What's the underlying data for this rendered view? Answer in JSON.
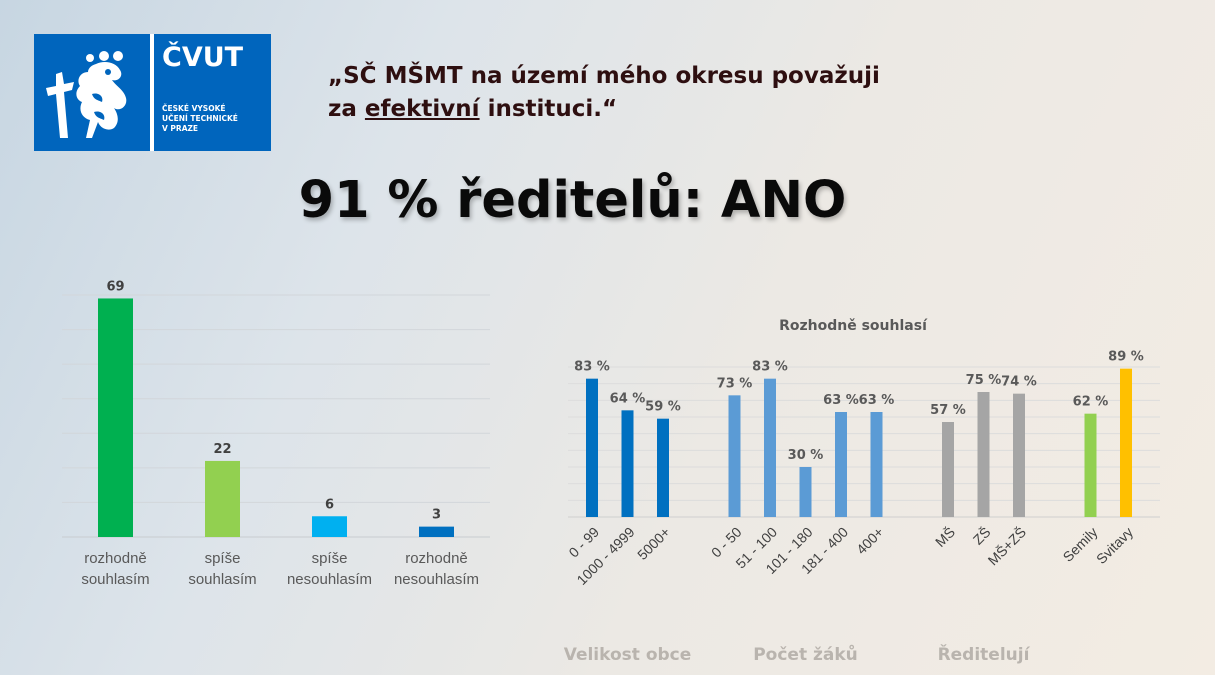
{
  "logo": {
    "brand": "ČVUT",
    "line1": "ČESKÉ VYSOKÉ",
    "line2": "UČENÍ TECHNICKÉ",
    "line3": "V PRAZE"
  },
  "quote": {
    "before": "„SČ MŠMT na území mého okresu považuji",
    "line2_prefix": "za ",
    "underlined": "efektivní",
    "line2_suffix": " instituci.“"
  },
  "headline": "91 % ředitelů: ANO",
  "colors": {
    "green_dark": "#00b050",
    "green_light": "#92d050",
    "blue_light": "#00b0f0",
    "blue_dark": "#0070c0",
    "blue_mid": "#5b9bd5",
    "gray": "#a5a5a5",
    "yellow": "#ffc000"
  },
  "chart_data": [
    {
      "type": "bar",
      "categories": [
        [
          "rozhodně",
          "souhlasím"
        ],
        [
          "spíše",
          "souhlasím"
        ],
        [
          "spíše",
          "nesouhlasím"
        ],
        [
          "rozhodně",
          "nesouhlasím"
        ]
      ],
      "values": [
        69,
        22,
        6,
        3
      ],
      "value_labels": [
        "69",
        "22",
        "6",
        "3"
      ],
      "colors": [
        "#00b050",
        "#92d050",
        "#00b0f0",
        "#0070c0"
      ],
      "ylim": [
        0,
        70
      ],
      "grid": true
    },
    {
      "type": "bar",
      "title": "Rozhodně souhlasí",
      "groups": [
        {
          "name": "Velikost obce",
          "categories": [
            "0 - 99",
            "1000 - 4999",
            "5000+"
          ],
          "values": [
            83,
            64,
            59
          ],
          "color": "#0070c0"
        },
        {
          "name": "Počet žáků",
          "categories": [
            "0 - 50",
            "51 - 100",
            "101 - 180",
            "181 - 400",
            "400+"
          ],
          "values": [
            73,
            83,
            30,
            63,
            63
          ],
          "color": "#5b9bd5"
        },
        {
          "name": "Ředitelují",
          "categories": [
            "MŠ",
            "ZŠ",
            "MŠ+ZŠ"
          ],
          "values": [
            57,
            75,
            74
          ],
          "color": "#a5a5a5"
        },
        {
          "name": "",
          "categories": [
            "Semily",
            "Svitavy"
          ],
          "values": [
            62,
            89
          ],
          "colors": [
            "#92d050",
            "#ffc000"
          ]
        }
      ],
      "value_suffix": " %",
      "ylim": [
        0,
        90
      ],
      "grid": true
    }
  ]
}
